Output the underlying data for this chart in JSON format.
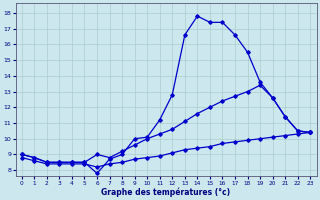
{
  "xlabel": "Graphe des températures (°c)",
  "x_ticks": [
    0,
    1,
    2,
    3,
    4,
    5,
    6,
    7,
    8,
    9,
    10,
    11,
    12,
    13,
    14,
    15,
    16,
    17,
    18,
    19,
    20,
    21,
    22,
    23
  ],
  "y_ticks": [
    8,
    9,
    10,
    11,
    12,
    13,
    14,
    15,
    16,
    17,
    18
  ],
  "ylim": [
    7.6,
    18.6
  ],
  "xlim": [
    -0.5,
    23.5
  ],
  "bg_color": "#cce8ee",
  "grid_color": "#aacccc",
  "line_color": "#0000cc",
  "line1_y": [
    9.0,
    8.8,
    8.5,
    8.5,
    8.5,
    8.5,
    7.8,
    8.7,
    9.0,
    10.0,
    10.1,
    11.2,
    12.8,
    16.6,
    17.8,
    17.4,
    17.4,
    16.6,
    15.5,
    13.6,
    12.6,
    11.4,
    10.5,
    10.4
  ],
  "line2_y": [
    9.0,
    8.8,
    8.5,
    8.5,
    8.5,
    8.5,
    9.0,
    8.8,
    9.2,
    9.6,
    10.0,
    10.3,
    10.6,
    11.1,
    11.6,
    12.0,
    12.4,
    12.7,
    13.0,
    13.4,
    12.6,
    11.4,
    10.5,
    10.4
  ],
  "line3_y": [
    8.8,
    8.6,
    8.4,
    8.4,
    8.4,
    8.4,
    8.2,
    8.4,
    8.5,
    8.7,
    8.8,
    8.9,
    9.1,
    9.3,
    9.4,
    9.5,
    9.7,
    9.8,
    9.9,
    10.0,
    10.1,
    10.2,
    10.3,
    10.4
  ]
}
